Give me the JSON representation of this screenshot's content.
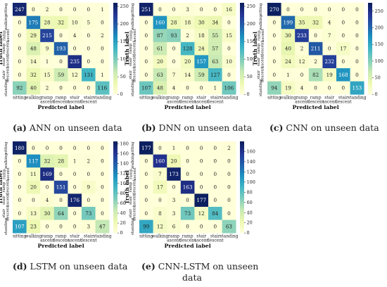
{
  "chart_data": [
    {
      "type": "heatmap",
      "caption_prefix": "(a)",
      "caption_text": "ANN on unseen data",
      "caption_lines": [
        "ANN on unseen data"
      ],
      "xlabel": "Predicted label",
      "ylabel": "Truth label",
      "categories": [
        "sitting",
        "walking",
        "ramp ascent",
        "ramp descent",
        "stair ascent",
        "stair descent",
        "standing"
      ],
      "matrix": [
        [
          247,
          0,
          2,
          0,
          0,
          0,
          1
        ],
        [
          0,
          175,
          28,
          32,
          10,
          5,
          0
        ],
        [
          0,
          29,
          215,
          0,
          4,
          0,
          2
        ],
        [
          0,
          48,
          9,
          193,
          0,
          0,
          0
        ],
        [
          0,
          14,
          1,
          0,
          235,
          0,
          0
        ],
        [
          0,
          32,
          15,
          59,
          12,
          131,
          1
        ],
        [
          92,
          40,
          2,
          0,
          0,
          0,
          116
        ]
      ],
      "colorbar_ticks": [
        0,
        50,
        100,
        150,
        200,
        250
      ],
      "vmax": 260
    },
    {
      "type": "heatmap",
      "caption_prefix": "(b)",
      "caption_text": "DNN on unseen data",
      "caption_lines": [
        "DNN on unseen data"
      ],
      "xlabel": "Predicted label",
      "ylabel": "Truth label",
      "categories": [
        "sitting",
        "walking",
        "ramp ascent",
        "ramp descent",
        "stair ascent",
        "stair descent",
        "standing"
      ],
      "matrix": [
        [
          251,
          0,
          0,
          3,
          0,
          0,
          16
        ],
        [
          0,
          160,
          28,
          18,
          30,
          34,
          0
        ],
        [
          0,
          87,
          93,
          2,
          18,
          55,
          15
        ],
        [
          0,
          61,
          0,
          128,
          24,
          57,
          0
        ],
        [
          0,
          20,
          0,
          20,
          157,
          63,
          10
        ],
        [
          0,
          63,
          7,
          14,
          59,
          127,
          0
        ],
        [
          107,
          48,
          4,
          0,
          0,
          1,
          106
        ]
      ],
      "colorbar_ticks": [
        0,
        50,
        100,
        150,
        200,
        250
      ],
      "vmax": 260
    },
    {
      "type": "heatmap",
      "caption_prefix": "(c)",
      "caption_text": "CNN on unseen data",
      "caption_lines": [
        "CNN on unseen data"
      ],
      "xlabel": "Predicted label",
      "ylabel": "Truth label",
      "categories": [
        "sitting",
        "walking",
        "ramp ascent",
        "ramp descent",
        "stair ascent",
        "stair descent",
        "standing"
      ],
      "matrix": [
        [
          270,
          0,
          0,
          0,
          0,
          0,
          0
        ],
        [
          0,
          199,
          35,
          32,
          4,
          0,
          0
        ],
        [
          0,
          30,
          233,
          0,
          7,
          0,
          0
        ],
        [
          0,
          40,
          2,
          211,
          0,
          17,
          0
        ],
        [
          0,
          24,
          12,
          2,
          232,
          0,
          0
        ],
        [
          0,
          1,
          0,
          82,
          19,
          168,
          0
        ],
        [
          94,
          19,
          4,
          0,
          0,
          0,
          153
        ]
      ],
      "colorbar_ticks": [
        0,
        50,
        100,
        150,
        200,
        250
      ],
      "vmax": 275
    },
    {
      "type": "heatmap",
      "caption_prefix": "(d)",
      "caption_text": "LSTM on unseen data",
      "caption_lines": [
        "LSTM on unseen data"
      ],
      "xlabel": "Predicted label",
      "ylabel": "Truth label",
      "categories": [
        "sitting",
        "walking",
        "ramp ascent",
        "ramp descent",
        "stair ascent",
        "stair descent",
        "standing"
      ],
      "matrix": [
        [
          180,
          0,
          0,
          0,
          0,
          0,
          0
        ],
        [
          0,
          117,
          32,
          28,
          1,
          2,
          0
        ],
        [
          0,
          11,
          169,
          0,
          0,
          0,
          0
        ],
        [
          0,
          20,
          0,
          151,
          0,
          9,
          0
        ],
        [
          0,
          0,
          4,
          0,
          176,
          0,
          0
        ],
        [
          0,
          13,
          30,
          64,
          0,
          73,
          0
        ],
        [
          107,
          23,
          0,
          0,
          0,
          3,
          47
        ]
      ],
      "colorbar_ticks": [
        0,
        20,
        40,
        60,
        80,
        100,
        120,
        140,
        160,
        180
      ],
      "vmax": 185
    },
    {
      "type": "heatmap",
      "caption_prefix": "(e)",
      "caption_text": "CNN-LSTM on unseen data",
      "caption_lines": [
        "CNN-LSTM on unseen",
        "data"
      ],
      "xlabel": "Predicted label",
      "ylabel": "Truth label",
      "categories": [
        "sitting",
        "walking",
        "ramp ascent",
        "ramp descent",
        "stair ascent",
        "stair descent",
        "standing"
      ],
      "matrix": [
        [
          177,
          0,
          1,
          0,
          0,
          0,
          2
        ],
        [
          0,
          160,
          20,
          0,
          0,
          0,
          0
        ],
        [
          0,
          7,
          173,
          0,
          0,
          0,
          0
        ],
        [
          0,
          17,
          0,
          163,
          0,
          0,
          0
        ],
        [
          0,
          0,
          3,
          0,
          177,
          0,
          0
        ],
        [
          0,
          8,
          3,
          73,
          12,
          84,
          0
        ],
        [
          99,
          12,
          6,
          0,
          0,
          0,
          63
        ]
      ],
      "colorbar_ticks": [
        0,
        20,
        40,
        60,
        80,
        100,
        120,
        140,
        160
      ],
      "vmax": 180
    }
  ],
  "colormap": [
    "#ffffd9",
    "#edf8b1",
    "#c7e9b4",
    "#7fcdbb",
    "#41b6c4",
    "#1d91c0",
    "#225ea8",
    "#253494",
    "#081d58"
  ]
}
